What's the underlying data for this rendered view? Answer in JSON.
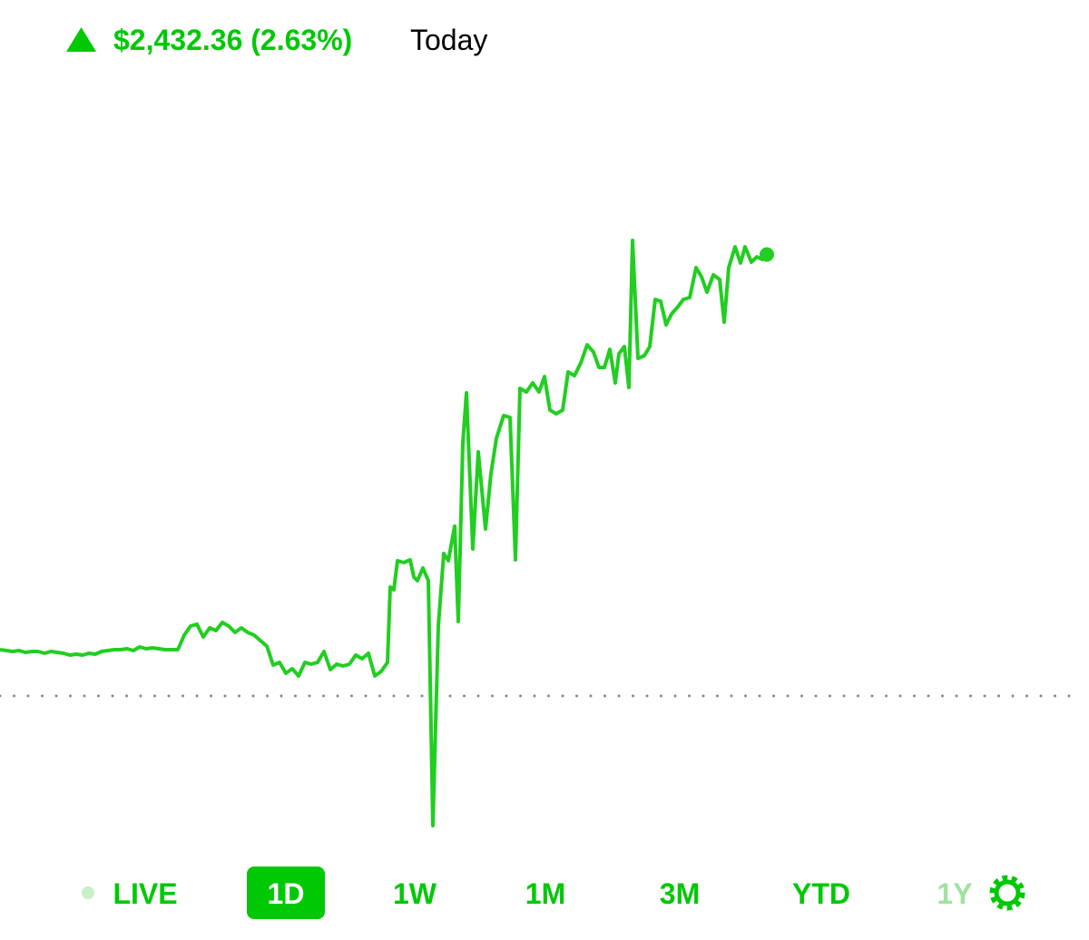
{
  "header": {
    "change": "$2,432.36 (2.63%)",
    "period": "Today"
  },
  "chart_data": {
    "type": "line",
    "color": "#21ce21",
    "x": [
      0,
      7,
      14,
      21,
      28,
      35,
      42,
      49,
      56,
      63,
      70,
      77,
      84,
      91,
      98,
      105,
      112,
      119,
      126,
      133,
      140,
      147,
      154,
      161,
      168,
      175,
      182,
      189,
      196,
      203,
      210,
      217,
      224,
      231,
      238,
      245,
      252,
      259,
      266,
      273,
      280,
      287,
      294,
      301,
      308,
      315,
      322,
      329,
      336,
      343,
      350,
      357,
      364,
      371,
      378,
      385,
      392,
      399,
      406,
      413,
      420,
      427,
      430,
      434,
      438,
      445,
      452,
      456,
      460,
      466,
      472,
      477,
      483,
      489,
      494,
      501,
      505,
      510,
      514,
      521,
      527,
      535,
      541,
      547,
      555,
      562,
      568,
      573,
      580,
      587,
      594,
      600,
      606,
      613,
      620,
      626,
      633,
      640,
      647,
      654,
      660,
      666,
      672,
      678,
      682,
      688,
      693,
      697,
      703,
      710,
      716,
      722,
      728,
      734,
      740,
      747,
      753,
      760,
      767,
      773,
      779,
      786,
      793,
      798,
      803,
      810,
      816,
      821,
      828,
      834,
      840,
      845
    ],
    "values": [
      255,
      250,
      245,
      250,
      240,
      245,
      245,
      235,
      245,
      240,
      235,
      225,
      230,
      225,
      235,
      230,
      245,
      250,
      255,
      255,
      260,
      250,
      270,
      260,
      265,
      260,
      255,
      255,
      255,
      335,
      385,
      395,
      325,
      375,
      360,
      405,
      385,
      350,
      375,
      350,
      335,
      305,
      275,
      170,
      185,
      125,
      150,
      110,
      185,
      175,
      185,
      245,
      145,
      175,
      165,
      175,
      225,
      205,
      235,
      110,
      135,
      185,
      600,
      585,
      745,
      735,
      750,
      655,
      635,
      705,
      635,
      -715,
      385,
      785,
      745,
      935,
      410,
      1395,
      1670,
      810,
      1345,
      920,
      1225,
      1420,
      1545,
      1535,
      750,
      1695,
      1675,
      1725,
      1675,
      1760,
      1575,
      1555,
      1575,
      1785,
      1765,
      1835,
      1935,
      1895,
      1810,
      1810,
      1910,
      1725,
      1885,
      1925,
      1700,
      2510,
      1860,
      1875,
      1925,
      2185,
      2175,
      2045,
      2105,
      2145,
      2185,
      2195,
      2360,
      2310,
      2225,
      2320,
      2295,
      2060,
      2360,
      2475,
      2385,
      2475,
      2390,
      2420,
      2405,
      2432.36
    ],
    "xlim": [
      0,
      1200
    ],
    "ylim": [
      -800,
      3300
    ],
    "baseline": 0
  },
  "range_buttons": [
    "LIVE",
    "1D",
    "1W",
    "1M",
    "3M",
    "YTD",
    "1Y"
  ],
  "selected_range": 1
}
